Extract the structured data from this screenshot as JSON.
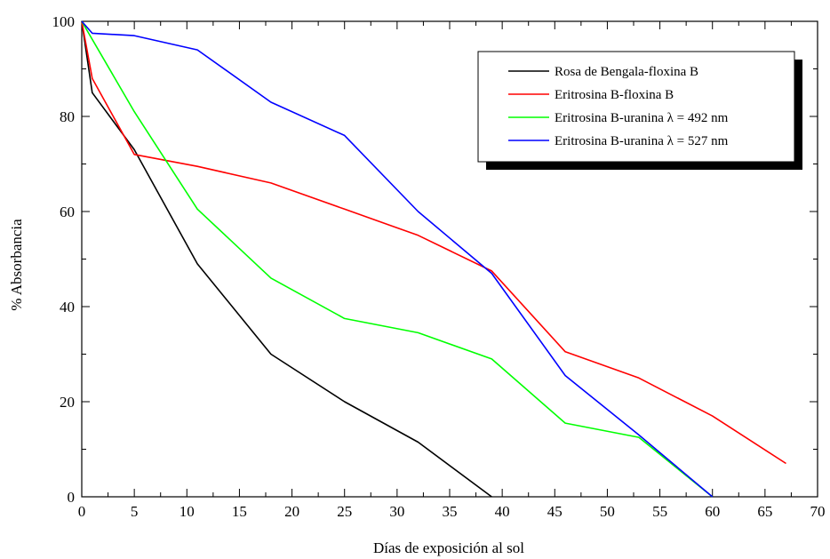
{
  "chart_data": {
    "type": "line",
    "title": "",
    "xlabel": "Días de exposición al sol",
    "ylabel": "% Absorbancia",
    "xlim": [
      0,
      70
    ],
    "ylim": [
      0,
      100
    ],
    "xticks": [
      "0",
      "5",
      "10",
      "15",
      "20",
      "25",
      "30",
      "35",
      "40",
      "45",
      "50",
      "55",
      "60",
      "65",
      "70"
    ],
    "yticks": [
      "0",
      "20",
      "40",
      "60",
      "80",
      "100"
    ],
    "grid": false,
    "legend_position": "top-right",
    "series": [
      {
        "name": "Rosa de Bengala-floxina B",
        "color": "#000000",
        "x": [
          0,
          1,
          5,
          11,
          18,
          25,
          32,
          39
        ],
        "y": [
          100,
          85,
          73,
          49,
          30,
          20,
          11.5,
          0
        ]
      },
      {
        "name": "Eritrosina B-floxina B",
        "color": "#ff0000",
        "x": [
          0,
          1,
          5,
          11,
          18,
          25,
          32,
          39,
          46,
          53,
          60,
          67
        ],
        "y": [
          100,
          88,
          72,
          69.5,
          66,
          60.5,
          55,
          47.5,
          30.5,
          25,
          17,
          7
        ]
      },
      {
        "name": "Eritrosina B-uranina λ = 492 nm",
        "color": "#00ff00",
        "x": [
          0,
          5,
          11,
          18,
          25,
          32,
          39,
          46,
          53,
          60
        ],
        "y": [
          100,
          81,
          60.5,
          46,
          37.5,
          34.5,
          29,
          15.5,
          12.5,
          0
        ]
      },
      {
        "name": "Eritrosina B-uranina λ = 527 nm",
        "color": "#0000ff",
        "x": [
          0,
          1,
          5,
          11,
          18,
          25,
          32,
          39,
          46,
          53,
          60
        ],
        "y": [
          100,
          97.5,
          97,
          94,
          83,
          76,
          60,
          47,
          25.5,
          13,
          0
        ]
      }
    ]
  }
}
